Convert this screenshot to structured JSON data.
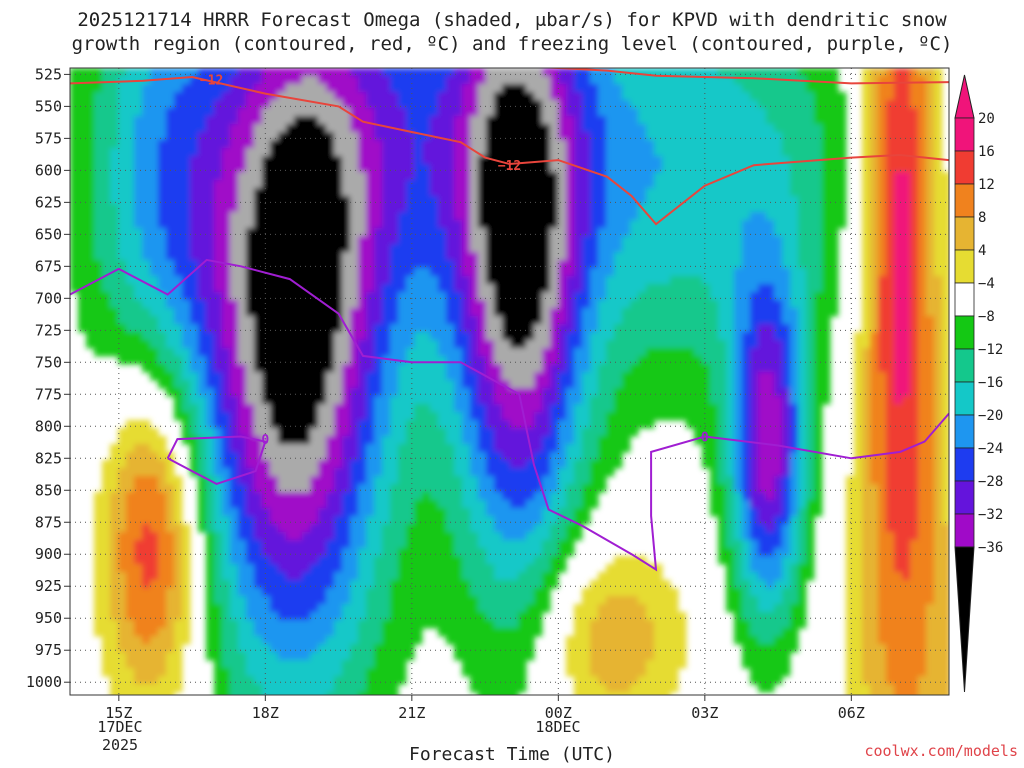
{
  "title_line1": "2025121714 HRRR Forecast Omega (shaded, μbar/s) for KPVD with dendritic snow",
  "title_line2": "growth region (contoured, red, ºC) and freezing level (contoured, purple, ºC)",
  "xlabel": "Forecast Time (UTC)",
  "credit": "coolwx.com/models",
  "date_label_1": "17DEC",
  "date_label_1b": "2025",
  "date_label_2": "18DEC",
  "chart_data": {
    "type": "heatmap",
    "title": "2025121714 HRRR Forecast Omega (shaded, μbar/s) for KPVD",
    "xlabel": "Forecast Time (UTC)",
    "ylabel": "",
    "y_ticks": [
      525,
      550,
      575,
      600,
      625,
      650,
      675,
      700,
      725,
      750,
      775,
      800,
      825,
      850,
      875,
      900,
      925,
      950,
      975,
      1000
    ],
    "y_range": [
      520,
      1010
    ],
    "x_ticks": [
      "15Z",
      "18Z",
      "21Z",
      "00Z",
      "03Z",
      "06Z"
    ],
    "x_range_hours": [
      14,
      32
    ],
    "colorbar_levels": [
      20,
      16,
      12,
      8,
      4,
      -4,
      -8,
      -12,
      -16,
      -20,
      -24,
      -28,
      -32,
      -36
    ],
    "colorbar_labels": [
      "20",
      "16",
      "12",
      "8",
      "4",
      "−4",
      "−8",
      "−12",
      "−16",
      "−20",
      "−24",
      "−28",
      "−32",
      "−36"
    ],
    "colors": {
      "pos20": "#f0147a",
      "pos16": "#f03c32",
      "pos12": "#f0821e",
      "pos8": "#e6b432",
      "pos4": "#e6dc32",
      "neutral": "#ffffff",
      "neg4": "#14c814",
      "neg8": "#14c88c",
      "neg12": "#14c8c8",
      "neg16": "#1e96f0",
      "neg20": "#1e3cf0",
      "neg24": "#6414dc",
      "neg28": "#a00ac8",
      "neg32": "#aaaaaa",
      "neg36": "#000000",
      "ground": "#a0522d",
      "dgz_contour": "#e8453c",
      "freezing_contour": "#a01ed2"
    },
    "contour_labels": {
      "dgz": "−12",
      "freezing": "0"
    },
    "dgz_upper_line": [
      {
        "x": 14,
        "p": 532
      },
      {
        "x": 15.5,
        "p": 530
      },
      {
        "x": 16.5,
        "p": 527
      },
      {
        "x": 18,
        "p": 540
      },
      {
        "x": 19.5,
        "p": 550
      },
      {
        "x": 20,
        "p": 562
      },
      {
        "x": 21,
        "p": 570
      },
      {
        "x": 22,
        "p": 578
      },
      {
        "x": 22.5,
        "p": 590
      },
      {
        "x": 23,
        "p": 595
      },
      {
        "x": 24,
        "p": 592
      },
      {
        "x": 25,
        "p": 605
      },
      {
        "x": 25.5,
        "p": 620
      },
      {
        "x": 26,
        "p": 642
      },
      {
        "x": 27,
        "p": 612
      },
      {
        "x": 28,
        "p": 596
      },
      {
        "x": 30,
        "p": 590
      },
      {
        "x": 31,
        "p": 588
      },
      {
        "x": 32,
        "p": 592
      }
    ],
    "dgz_top_line": [
      {
        "x": 23,
        "p": 518
      },
      {
        "x": 25,
        "p": 522
      },
      {
        "x": 26,
        "p": 526
      },
      {
        "x": 28,
        "p": 528
      },
      {
        "x": 30,
        "p": 532
      },
      {
        "x": 32,
        "p": 531
      }
    ],
    "freezing_line": [
      {
        "x": 14,
        "p": 697
      },
      {
        "x": 15,
        "p": 677
      },
      {
        "x": 16,
        "p": 697
      },
      {
        "x": 16.8,
        "p": 670
      },
      {
        "x": 17.5,
        "p": 675
      },
      {
        "x": 18.5,
        "p": 685
      },
      {
        "x": 19.5,
        "p": 712
      },
      {
        "x": 20,
        "p": 745
      },
      {
        "x": 21,
        "p": 750
      },
      {
        "x": 22,
        "p": 750
      },
      {
        "x": 23.2,
        "p": 775
      },
      {
        "x": 23.5,
        "p": 830
      },
      {
        "x": 23.8,
        "p": 865
      },
      {
        "x": 24.5,
        "p": 878
      },
      {
        "x": 25.5,
        "p": 900
      },
      {
        "x": 26,
        "p": 912
      },
      {
        "x": 25.9,
        "p": 870
      },
      {
        "x": 25.9,
        "p": 820
      },
      {
        "x": 27,
        "p": 808
      },
      {
        "x": 28.5,
        "p": 815
      },
      {
        "x": 30,
        "p": 825
      },
      {
        "x": 31,
        "p": 820
      },
      {
        "x": 31.5,
        "p": 812
      },
      {
        "x": 32,
        "p": 790
      }
    ],
    "freezing_loop": [
      {
        "x": 16,
        "p": 825
      },
      {
        "x": 16.2,
        "p": 810
      },
      {
        "x": 17.5,
        "p": 808
      },
      {
        "x": 18,
        "p": 812
      },
      {
        "x": 17.8,
        "p": 835
      },
      {
        "x": 17,
        "p": 845
      },
      {
        "x": 16.5,
        "p": 835
      },
      {
        "x": 16,
        "p": 825
      }
    ]
  }
}
